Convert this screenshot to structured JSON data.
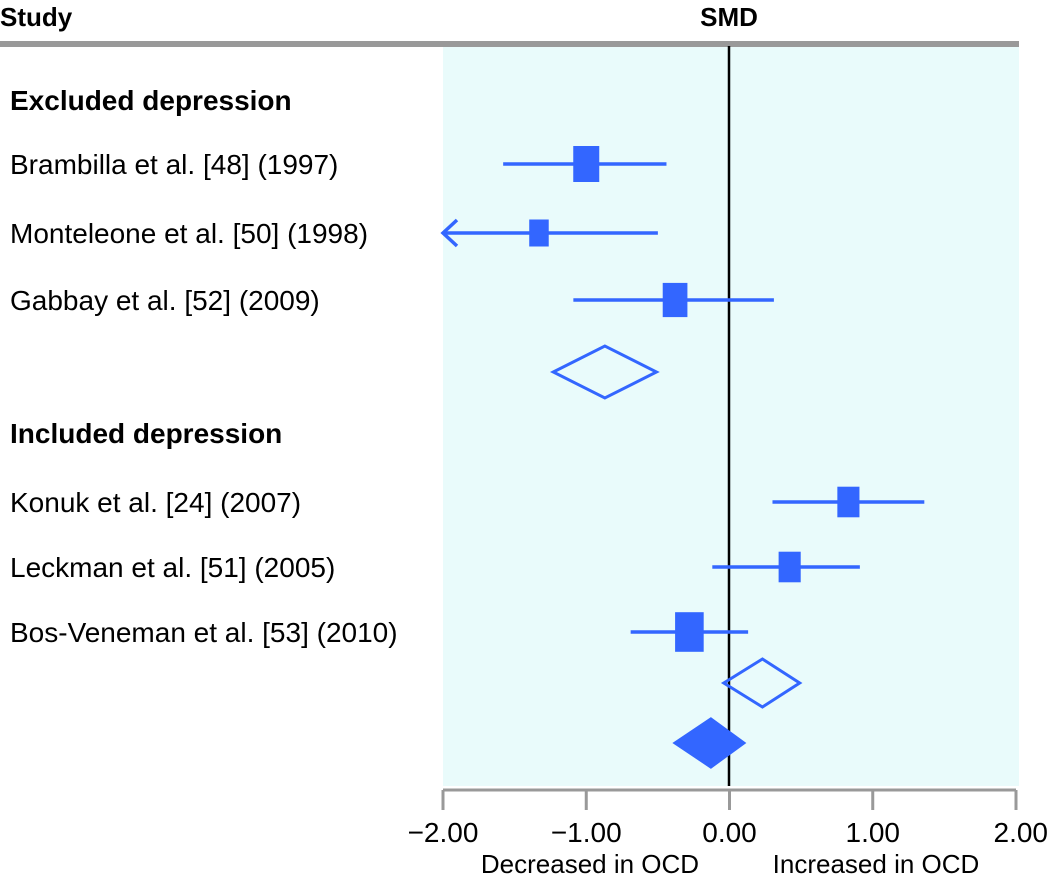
{
  "header": {
    "study_label": "Study",
    "measure_label": "SMD"
  },
  "groups": [
    {
      "label": "Excluded depression"
    },
    {
      "label": "Included depression"
    }
  ],
  "axis": {
    "tick_labels": [
      "−2.00",
      "−1.00",
      "0.00",
      "1.00",
      "2.00"
    ],
    "left_direction": "Decreased in OCD",
    "right_direction": "Increased in OCD"
  },
  "colors": {
    "marker": "#3366ff",
    "panel_background": "#e9fbfb",
    "rule": "#999999",
    "axis": "#999999"
  },
  "chart_data": {
    "type": "forest",
    "xlabel": "SMD",
    "xlim": [
      -2,
      2
    ],
    "xticks": [
      -2,
      -1,
      0,
      1,
      2
    ],
    "reference_line": 0,
    "studies": [
      {
        "label": "Brambilla et al. [48] (1997)",
        "group": 0,
        "smd": -1.0,
        "lower": -1.58,
        "upper": -0.44,
        "weight": 1.0
      },
      {
        "label": "Monteleone et al. [50] (1998)",
        "group": 0,
        "smd": -1.33,
        "lower": -2.0,
        "upper": -0.5,
        "weight": 0.75,
        "lower_truncated": true
      },
      {
        "label": "Gabbay et al. [52] (2009)",
        "group": 0,
        "smd": -0.38,
        "lower": -1.09,
        "upper": 0.31,
        "weight": 0.95
      },
      {
        "label": "Konuk et al. [24] (2007)",
        "group": 1,
        "smd": 0.83,
        "lower": 0.3,
        "upper": 1.36,
        "weight": 0.85
      },
      {
        "label": "Leckman et al. [51] (2005)",
        "group": 1,
        "smd": 0.42,
        "lower": -0.12,
        "upper": 0.91,
        "weight": 0.85
      },
      {
        "label": "Bos-Veneman et al. [53] (2010)",
        "group": 1,
        "smd": -0.28,
        "lower": -0.69,
        "upper": 0.13,
        "weight": 1.1
      }
    ],
    "subtotals": [
      {
        "group": 0,
        "smd": -0.87,
        "lower": -1.23,
        "upper": -0.51
      },
      {
        "group": 1,
        "smd": 0.23,
        "lower": -0.04,
        "upper": 0.49
      }
    ],
    "overall": {
      "smd": -0.13,
      "lower": -0.38,
      "upper": 0.1
    }
  }
}
